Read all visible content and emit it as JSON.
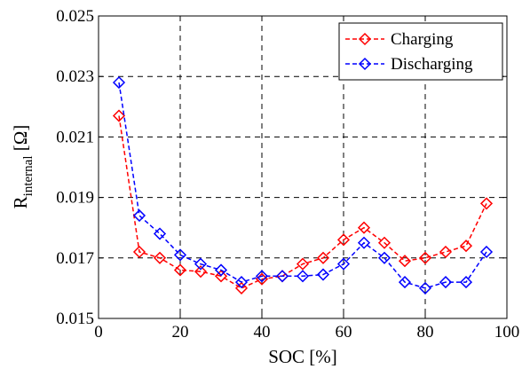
{
  "chart_data": {
    "type": "line",
    "xlabel": "SOC [%]",
    "ylabel_main": "R",
    "ylabel_sub": "internal",
    "ylabel_unit": " [Ω]",
    "xlim": [
      0,
      100
    ],
    "ylim": [
      0.015,
      0.025
    ],
    "xticks": [
      "0",
      "20",
      "40",
      "60",
      "80",
      "100"
    ],
    "yticks": [
      "0.015",
      "0.017",
      "0.019",
      "0.021",
      "0.023",
      "0.025"
    ],
    "grid": true,
    "legend_position": "top-right",
    "series": [
      {
        "name": "Charging",
        "color": "#ff0000",
        "marker": "diamond",
        "x": [
          5,
          10,
          15,
          20,
          25,
          30,
          35,
          40,
          45,
          50,
          55,
          60,
          65,
          70,
          75,
          80,
          85,
          90,
          95
        ],
        "y": [
          0.0217,
          0.0172,
          0.017,
          0.0166,
          0.01655,
          0.0164,
          0.016,
          0.0163,
          0.0164,
          0.0168,
          0.017,
          0.0176,
          0.018,
          0.0175,
          0.0169,
          0.017,
          0.0172,
          0.0174,
          0.0188
        ]
      },
      {
        "name": "Discharging",
        "color": "#0000ff",
        "marker": "diamond",
        "x": [
          5,
          10,
          15,
          20,
          25,
          30,
          35,
          40,
          45,
          50,
          55,
          60,
          65,
          70,
          75,
          80,
          85,
          90,
          95
        ],
        "y": [
          0.0228,
          0.0184,
          0.0178,
          0.0171,
          0.0168,
          0.0166,
          0.0162,
          0.0164,
          0.0164,
          0.0164,
          0.01645,
          0.0168,
          0.0175,
          0.017,
          0.0162,
          0.016,
          0.0162,
          0.0162,
          0.0172
        ]
      }
    ]
  }
}
